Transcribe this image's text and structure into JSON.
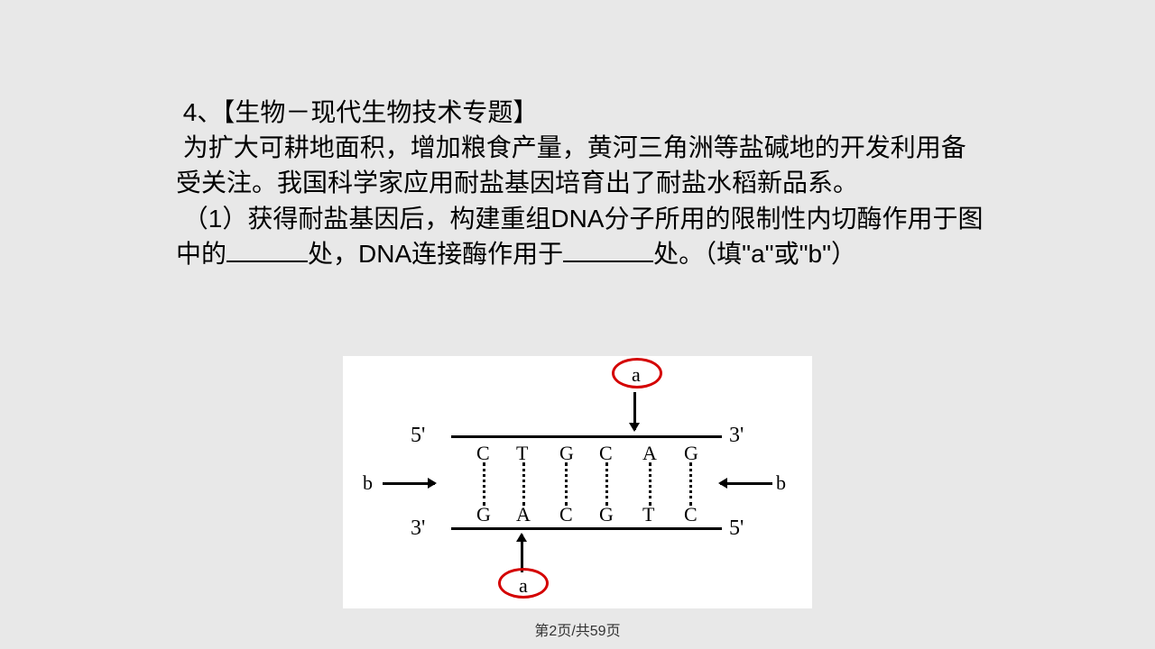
{
  "question": {
    "number": "4、",
    "topic": "【生物－现代生物技术专题】",
    "intro": "为扩大可耕地面积，增加粮食产量，黄河三角洲等盐碱地的开发利用备受关注。我国科学家应用耐盐基因培育出了耐盐水稻新品系。",
    "sub1_a": "（1）获得耐盐基因后，构建重组DNA分子所用的限制性内切酶作用于图中的",
    "sub1_b": "处，DNA连接酶作用于",
    "sub1_c": "处。（填\"a\"或\"b\"）"
  },
  "diagram": {
    "type": "dna-schematic",
    "label_a": "a",
    "label_b": "b",
    "end5": "5'",
    "end3": "3'",
    "top_bases": [
      "C",
      "T",
      "G",
      "C",
      "A",
      "G"
    ],
    "bot_bases": [
      "G",
      "A",
      "C",
      "G",
      "T",
      "C"
    ],
    "colors": {
      "ellipse": "#d40000",
      "line": "#000000",
      "background": "#ffffff"
    }
  },
  "footer": "第2页/共59页"
}
